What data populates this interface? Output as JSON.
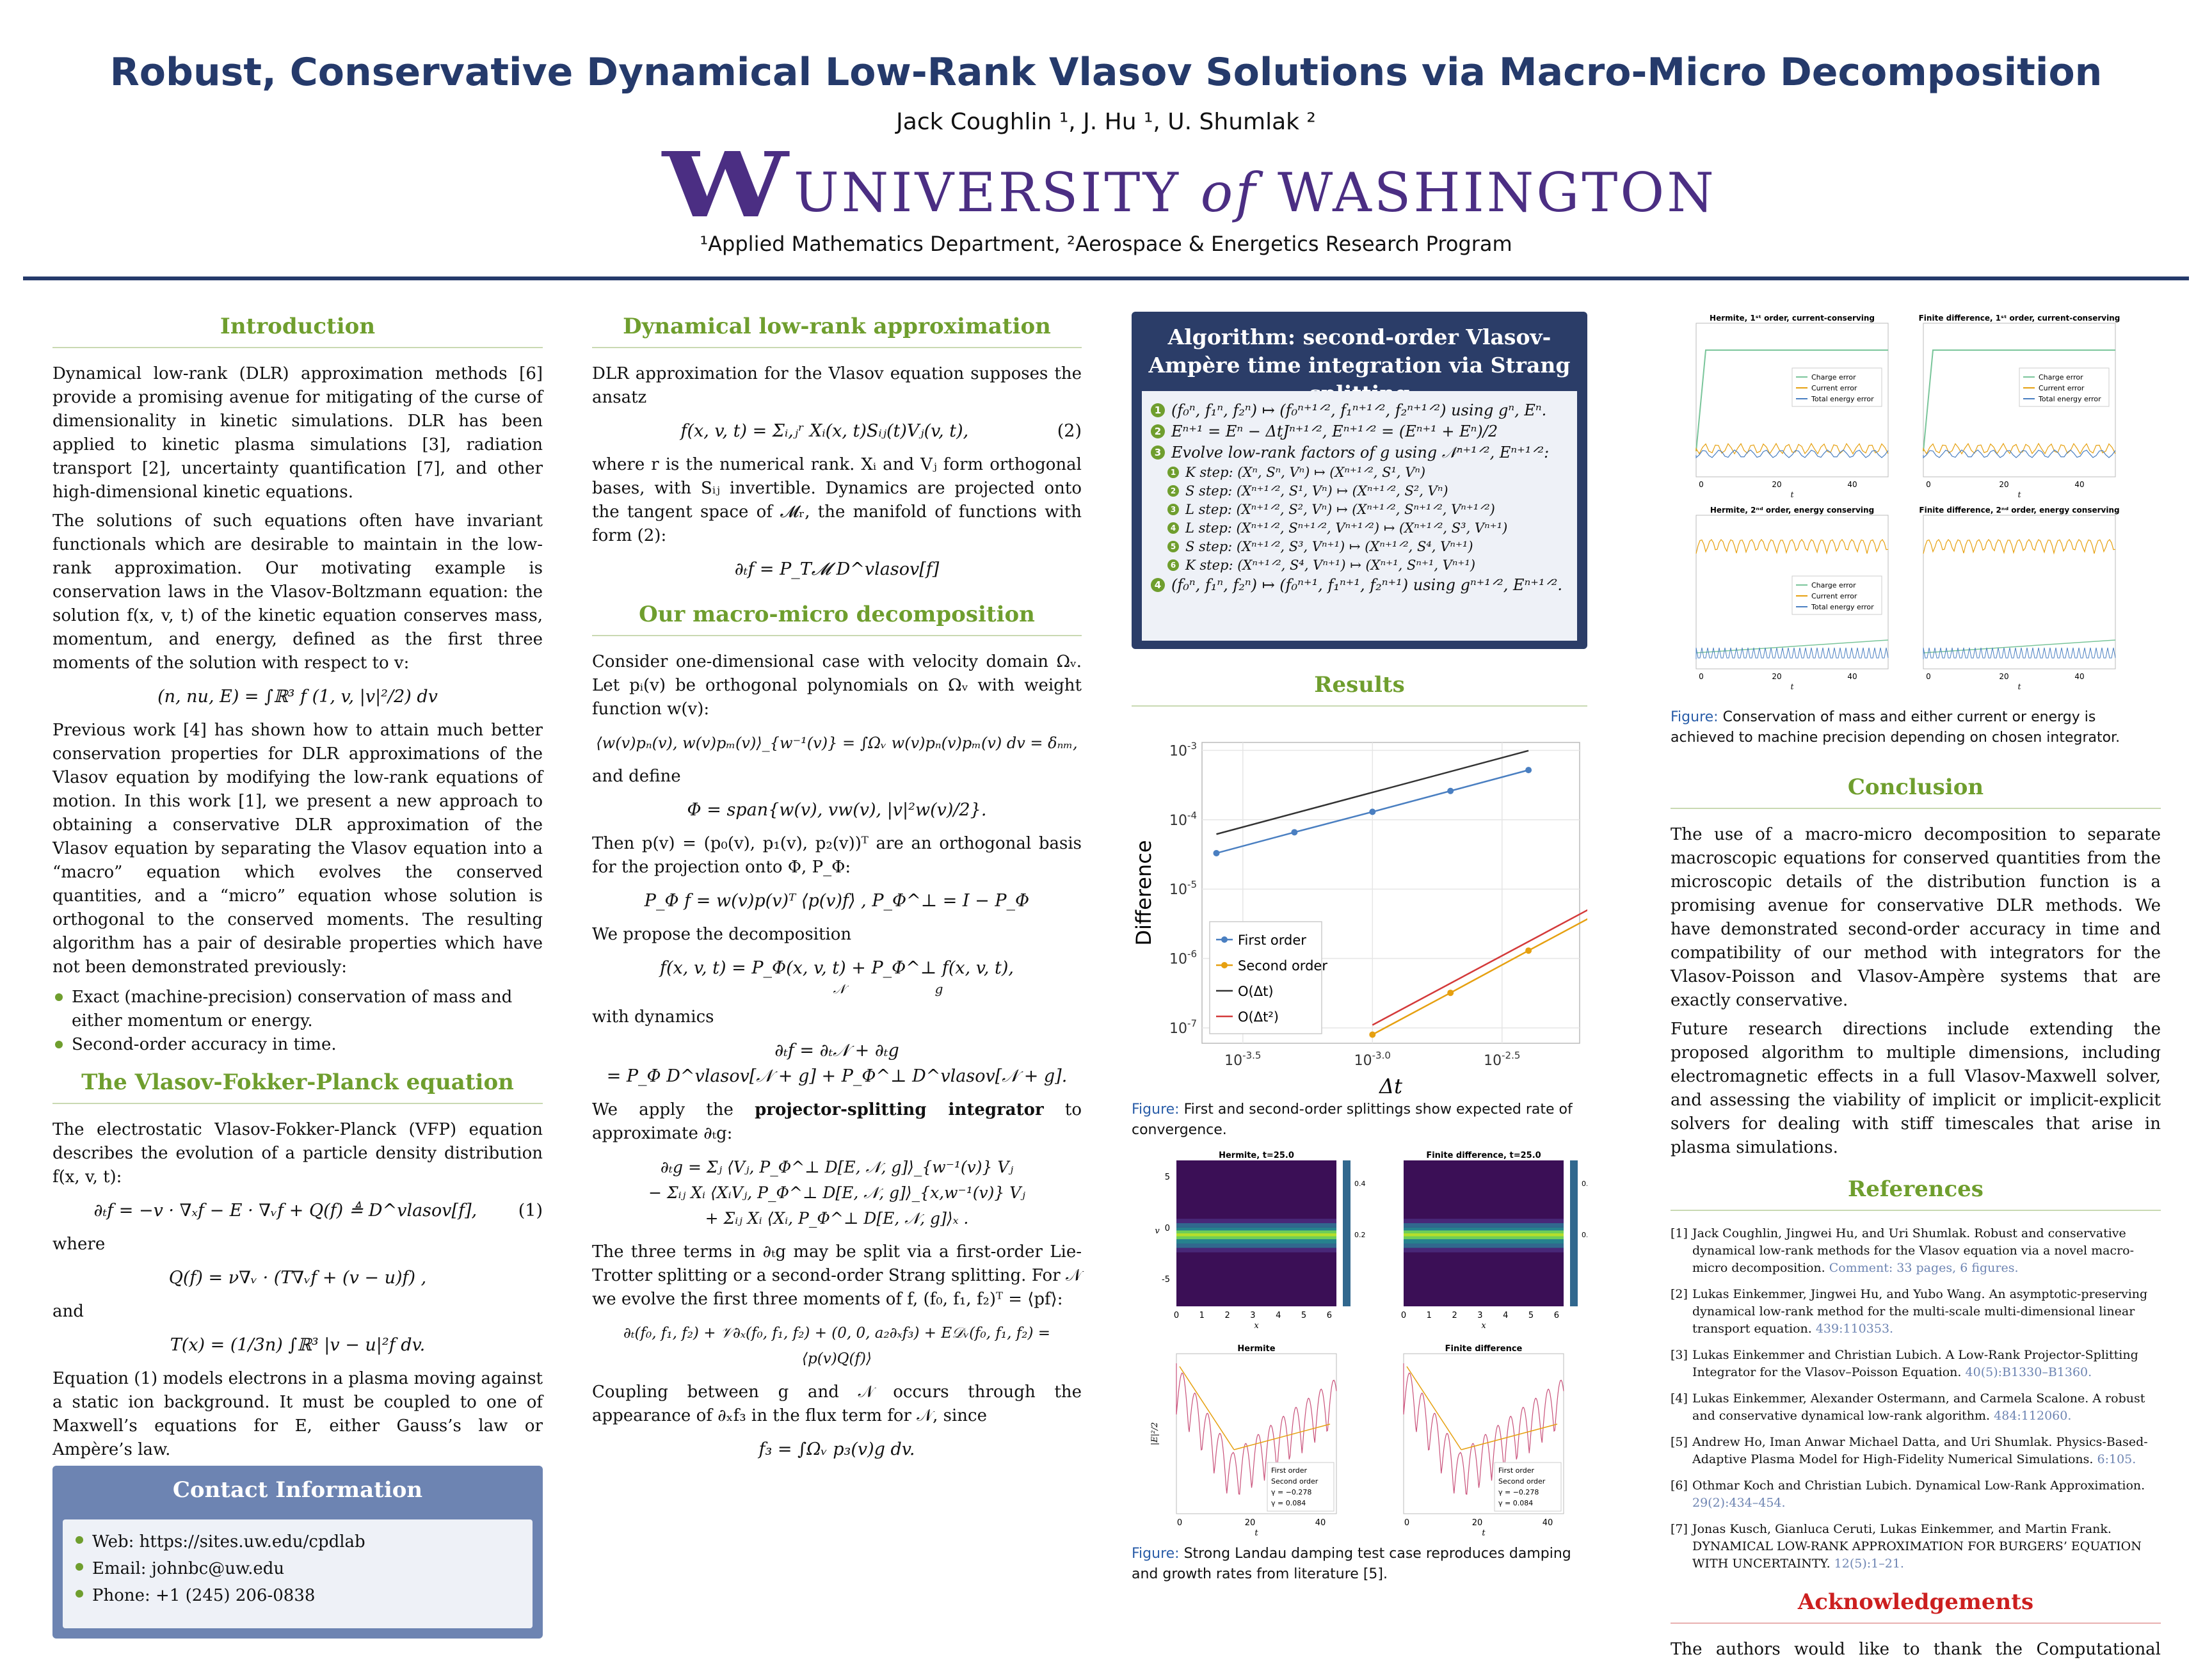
{
  "header": {
    "title": "Robust, Conservative Dynamical Low-Rank Vlasov Solutions via Macro-Micro Decomposition",
    "authors": "Jack Coughlin ¹, J. Hu ¹, U. Shumlak ²",
    "logo_w": "W",
    "logo_text_1": "UNIVERSITY ",
    "logo_text_of": "of",
    "logo_text_2": " WASHINGTON",
    "affiliations": "¹Applied Mathematics Department, ²Aerospace & Energetics Research Program"
  },
  "intro": {
    "title": "Introduction",
    "p1": "Dynamical low-rank (DLR) approximation methods [6] provide a promising avenue for mitigating of the curse of dimensionality in kinetic simulations. DLR has been applied to kinetic plasma simulations [3], radiation transport [2], uncertainty quantification [7], and other high-dimensional kinetic equations.",
    "p2": "The solutions of such equations often have invariant functionals which are desirable to maintain in the low-rank approximation. Our motivating example is conservation laws in the Vlasov-Boltzmann equation: the solution f(x, v, t) of the kinetic equation conserves mass, momentum, and energy, defined as the first three moments of the solution with respect to v:",
    "eq_moments": "(n, nu, E) = ∫ℝ³ f (1, v, |v|²/2) dv",
    "p3": "Previous work [4] has shown how to attain much better conservation properties for DLR approximations of the Vlasov equation by modifying the low-rank equations of motion. In this work [1], we present a new approach to obtaining a conservative DLR approximation of the Vlasov equation by separating the Vlasov equation into a “macro” equation which evolves the conserved quantities, and a “micro” equation whose solution is orthogonal to the conserved moments. The resulting algorithm has a pair of desirable properties which have not been demonstrated previously:",
    "bullets": [
      "Exact (machine-precision) conservation of mass and either momentum or energy.",
      "Second-order accuracy in time."
    ]
  },
  "vfp": {
    "title": "The Vlasov-Fokker-Planck equation",
    "p1": "The electrostatic Vlasov-Fokker-Planck (VFP) equation describes the evolution of a particle density distribution f(x, v, t):",
    "eq1": "∂ₜf = −v · ∇ₓf − E · ∇ᵥf + Q(f) ≜ D^vlasov[f],",
    "eq1_num": "(1)",
    "where": "where",
    "eq_q": "Q(f) = ν∇ᵥ · (T∇ᵥf + (v − u)f) ,",
    "and": "and",
    "eq_t": "T(x) = (1/3n) ∫ℝ³ |v − u|²f dv.",
    "p2": "Equation (1) models electrons in a plasma moving against a static ion background. It must be coupled to one of Maxwell’s equations for E, either Gauss’s law or Ampère’s law."
  },
  "contact": {
    "title": "Contact Information",
    "items": [
      "Web: https://sites.uw.edu/cpdlab",
      "Email: johnbc@uw.edu",
      "Phone: +1 (245) 206-0838"
    ]
  },
  "dlr": {
    "title": "Dynamical low-rank approximation",
    "p1": "DLR approximation for the Vlasov equation supposes the ansatz",
    "eq2": "f(x, v, t) = Σᵢ,ⱼʳ Xᵢ(x, t)Sᵢⱼ(t)Vⱼ(v, t),",
    "eq2_num": "(2)",
    "p2": "where r is the numerical rank. Xᵢ and Vⱼ form orthogonal bases, with Sᵢⱼ invertible. Dynamics are projected onto the tangent space of 𝓜ᵣ, the manifold of functions with form (2):",
    "eq3": "∂ₜf = P_T𝓜 D^vlasov[f]"
  },
  "macro": {
    "title": "Our macro-micro decomposition",
    "p1": "Consider one-dimensional case with velocity domain Ωᵥ. Let pᵢ(v) be orthogonal polynomials on Ωᵥ with weight function w(v):",
    "eq1": "⟨w(v)pₙ(v), w(v)pₘ(v)⟩_{w⁻¹(v)} = ∫Ωᵥ w(v)pₙ(v)pₘ(v) dv = δₙₘ,",
    "and_define": "and define",
    "eq2": "Φ = span{w(v), vw(v), |v|²w(v)/2}.",
    "p2": "Then p(v) = (p₀(v), p₁(v), p₂(v))ᵀ are an orthogonal basis for the projection onto Φ, P_Φ:",
    "eq3": "P_Φ f = w(v)p(v)ᵀ ⟨p(v)f⟩ ,    P_Φ^⊥ = I − P_Φ",
    "p3": "We propose the decomposition",
    "eq4": "f(x, v, t) = P_Φ(x, v, t) + P_Φ^⊥ f(x, v, t),",
    "eq4_sub": "𝒩                      g",
    "p4": "with dynamics",
    "eq5a": "∂ₜf = ∂ₜ𝒩 + ∂ₜg",
    "eq5b": "= P_Φ D^vlasov[𝒩 + g] + P_Φ^⊥ D^vlasov[𝒩 + g].",
    "p5_pre": "We apply the ",
    "p5_bold": "projector-splitting integrator",
    "p5_post": " to approximate ∂ₜg:",
    "eq6a": "∂ₜg = Σⱼ ⟨Vⱼ, P_Φ^⊥ D[E, 𝒩, g]⟩_{w⁻¹(v)} Vⱼ",
    "eq6b": "− Σᵢⱼ Xᵢ ⟨XᵢVⱼ, P_Φ^⊥ D[E, 𝒩, g]⟩_{x,w⁻¹(v)} Vⱼ",
    "eq6c": "+ Σᵢⱼ Xᵢ ⟨Xᵢ, P_Φ^⊥ D[E, 𝒩, g]⟩ₓ .",
    "p6": "The three terms in ∂ₜg may be split via a first-order Lie-Trotter splitting or a second-order Strang splitting. For 𝒩 we evolve the first three moments of f, (f₀, f₁, f₂)ᵀ = ⟨pf⟩:",
    "eq7": "∂ₜ(f₀, f₁, f₂) + 𝒱∂ₓ(f₀, f₁, f₂) + (0, 0, a₂∂ₓf₃) + E𝒟ᵥ(f₀, f₁, f₂) = ⟨p(v)Q(f)⟩",
    "p7": "Coupling between g and 𝒩 occurs through the appearance of ∂ₓf₃ in the flux term for 𝒩, since",
    "eq8": "f₃ = ∫Ωᵥ p₃(v)g dv."
  },
  "algo": {
    "title": "Algorithm: second-order Vlasov-Ampère time integration via Strang splitting",
    "steps": [
      {
        "n": "1",
        "text": "(f₀ⁿ, f₁ⁿ, f₂ⁿ) ↦ (f₀ⁿ⁺¹ᐟ², f₁ⁿ⁺¹ᐟ², f₂ⁿ⁺¹ᐟ²) using gⁿ, Eⁿ."
      },
      {
        "n": "2",
        "text": "Eⁿ⁺¹ = Eⁿ − ΔtJⁿ⁺¹ᐟ², Eⁿ⁺¹ᐟ² = (Eⁿ⁺¹ + Eⁿ)/2"
      },
      {
        "n": "3",
        "text": "Evolve low-rank factors of g using 𝒩ⁿ⁺¹ᐟ², Eⁿ⁺¹ᐟ²:"
      }
    ],
    "substeps": [
      {
        "n": "1",
        "text": "K step: (Xⁿ, Sⁿ, Vⁿ) ↦ (Xⁿ⁺¹ᐟ², S¹, Vⁿ)"
      },
      {
        "n": "2",
        "text": "S step: (Xⁿ⁺¹ᐟ², S¹, Vⁿ) ↦ (Xⁿ⁺¹ᐟ², S², Vⁿ)"
      },
      {
        "n": "3",
        "text": "L step: (Xⁿ⁺¹ᐟ², S², Vⁿ) ↦ (Xⁿ⁺¹ᐟ², Sⁿ⁺¹ᐟ², Vⁿ⁺¹ᐟ²)"
      },
      {
        "n": "4",
        "text": "L step: (Xⁿ⁺¹ᐟ², Sⁿ⁺¹ᐟ², Vⁿ⁺¹ᐟ²) ↦ (Xⁿ⁺¹ᐟ², S³, Vⁿ⁺¹)"
      },
      {
        "n": "5",
        "text": "S step: (Xⁿ⁺¹ᐟ², S³, Vⁿ⁺¹) ↦ (Xⁿ⁺¹ᐟ², S⁴, Vⁿ⁺¹)"
      },
      {
        "n": "6",
        "text": "K step: (Xⁿ⁺¹ᐟ², S⁴, Vⁿ⁺¹) ↦ (Xⁿ⁺¹, Sⁿ⁺¹, Vⁿ⁺¹)"
      }
    ],
    "last": {
      "n": "4",
      "text": "(f₀ⁿ, f₁ⁿ, f₂ⁿ) ↦ (f₀ⁿ⁺¹, f₁ⁿ⁺¹, f₂ⁿ⁺¹) using gⁿ⁺¹ᐟ², Eⁿ⁺¹ᐟ²."
    }
  },
  "results": {
    "title": "Results",
    "caption_label": "Figure:",
    "caption1": " First and second-order splittings show expected rate of convergence.",
    "caption2": " Strong Landau damping test case reproduces damping and growth rates from literature [5]."
  },
  "chart_data": [
    {
      "type": "line",
      "title": "",
      "xlabel": "Δt",
      "ylabel": "Difference",
      "log_x": true,
      "log_y": true,
      "xlim": [
        0.00022,
        0.0063
      ],
      "ylim": [
        6e-08,
        0.0013
      ],
      "x_ticks": [
        "10^-3.5",
        "10^-3.0",
        "10^-2.5"
      ],
      "y_ticks": [
        "10^-7",
        "10^-6",
        "10^-5",
        "10^-4",
        "10^-3"
      ],
      "grid": true,
      "legend_position": "bottom-left",
      "series": [
        {
          "name": "First order",
          "color": "#4a7fc1",
          "marker": "dot",
          "x": [
            0.00025,
            0.0005,
            0.001,
            0.002,
            0.004
          ],
          "y": [
            3.3e-05,
            6.6e-05,
            0.00013,
            0.00026,
            0.00052
          ]
        },
        {
          "name": "Second order",
          "color": "#e6a010",
          "marker": "dot",
          "x": [
            0.001,
            0.002,
            0.004,
            0.008
          ],
          "y": [
            8e-08,
            3.2e-07,
            1.3e-06,
            5.2e-06
          ]
        },
        {
          "name": "O(Δt)",
          "color": "#333333",
          "marker": "none",
          "x": [
            0.00025,
            0.004
          ],
          "y": [
            6.2e-05,
            0.00099
          ]
        },
        {
          "name": "O(Δt²)",
          "color": "#d43a3a",
          "marker": "none",
          "x": [
            0.001,
            0.008
          ],
          "y": [
            1.1e-07,
            7e-06
          ]
        }
      ]
    }
  ],
  "conservation_figs": {
    "panels": [
      {
        "title": "Hermite, 1ˢᵗ order, current-conserving",
        "legend": [
          "Charge error",
          "Current error",
          "Total energy error"
        ]
      },
      {
        "title": "Finite difference, 1ˢᵗ order, current-conserving",
        "legend": [
          "Charge error",
          "Current error",
          "Total energy error"
        ]
      },
      {
        "title": "Hermite, 2ⁿᵈ order, energy conserving",
        "legend": [
          "Charge error",
          "Current error",
          "Total energy error"
        ]
      },
      {
        "title": "Finite difference, 2ⁿᵈ order, energy conserving",
        "legend": []
      }
    ],
    "xlabel": "t",
    "x_ticks": [
      "0",
      "20",
      "40"
    ],
    "colors": {
      "charge": "#7ac59a",
      "current": "#e6a010",
      "energy": "#4a7fc1"
    },
    "caption_label": "Figure:",
    "caption": " Conservation of mass and either current or energy is achieved to machine precision depending on chosen integrator."
  },
  "landau_figs": {
    "heat_titles": [
      "Hermite, t=25.0",
      "Finite difference, t=25.0"
    ],
    "line_titles": [
      "Hermite",
      "Finite difference"
    ],
    "heat_xlabel": "x",
    "heat_ylabel": "v",
    "line_xlabel": "t",
    "line_ylabel": "|E|²/2",
    "heat_x_ticks": [
      "0",
      "1",
      "2",
      "3",
      "4",
      "5",
      "6"
    ],
    "heat_y_ticks": [
      "5",
      "0",
      "-5"
    ],
    "colorbar_ticks": [
      "0.4",
      "0.2"
    ],
    "line_x_ticks": [
      "0",
      "20",
      "40"
    ],
    "legend": [
      "First order",
      "Second order",
      "γ = −0.278",
      "γ = 0.084"
    ]
  },
  "conclusion": {
    "title": "Conclusion",
    "p1": "The use of a macro-micro decomposition to separate macroscopic equations for conserved quantities from the microscopic details of the distribution function is a promising avenue for conservative DLR methods. We have demonstrated second-order accuracy in time and compatibility of our method with integrators for the Vlasov-Poisson and Vlasov-Ampère systems that are exactly conservative.",
    "p2": "Future research directions include extending the proposed algorithm to multiple dimensions, including electromagnetic effects in a full Vlasov-Maxwell solver, and assessing the viability of implicit or implicit-explicit solvers for dealing with stiff timescales that arise in plasma simulations."
  },
  "references": {
    "title": "References",
    "items": [
      {
        "n": "[1]",
        "text": "Jack Coughlin, Jingwei Hu, and Uri Shumlak. Robust and conservative dynamical low-rank methods for the Vlasov equation via a novel macro-micro decomposition.",
        "link": "Comment: 33 pages, 6 figures."
      },
      {
        "n": "[2]",
        "text": "Lukas Einkemmer, Jingwei Hu, and Yubo Wang. An asymptotic-preserving dynamical low-rank method for the multi-scale multi-dimensional linear transport equation.",
        "link": "439:110353."
      },
      {
        "n": "[3]",
        "text": "Lukas Einkemmer and Christian Lubich. A Low-Rank Projector-Splitting Integrator for the Vlasov–Poisson Equation.",
        "link": "40(5):B1330–B1360."
      },
      {
        "n": "[4]",
        "text": "Lukas Einkemmer, Alexander Ostermann, and Carmela Scalone. A robust and conservative dynamical low-rank algorithm.",
        "link": "484:112060."
      },
      {
        "n": "[5]",
        "text": "Andrew Ho, Iman Anwar Michael Datta, and Uri Shumlak. Physics-Based-Adaptive Plasma Model for High-Fidelity Numerical Simulations.",
        "link": "6:105."
      },
      {
        "n": "[6]",
        "text": "Othmar Koch and Christian Lubich. Dynamical Low-Rank Approximation.",
        "link": "29(2):434–454."
      },
      {
        "n": "[7]",
        "text": "Jonas Kusch, Gianluca Ceruti, Lukas Einkemmer, and Martin Frank. DYNAMICAL LOW-RANK APPROXIMATION FOR BURGERS’ EQUATION WITH UNCERTAINTY.",
        "link": "12(5):1–21."
      }
    ]
  },
  "ack": {
    "title": "Acknowledgements",
    "p": "The authors would like to thank the Computational Plasma Dynamics group at the Unviersity of Washington for many valuable discussions."
  }
}
